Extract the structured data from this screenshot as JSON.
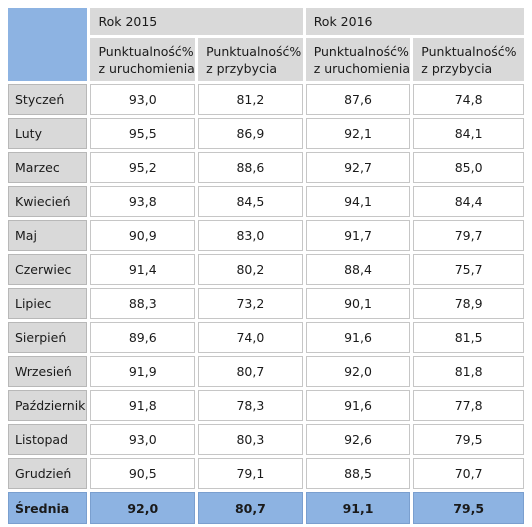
{
  "header": {
    "year1": "Rok 2015",
    "year2": "Rok 2016",
    "col_departure": [
      "Punktualność%",
      "z uruchomienia"
    ],
    "col_arrival": [
      "Punktualność%",
      "z przybycia"
    ]
  },
  "rows": [
    {
      "month": "Styczeń",
      "v": [
        "93,0",
        "81,2",
        "87,6",
        "74,8"
      ]
    },
    {
      "month": "Luty",
      "v": [
        "95,5",
        "86,9",
        "92,1",
        "84,1"
      ]
    },
    {
      "month": "Marzec",
      "v": [
        "95,2",
        "88,6",
        "92,7",
        "85,0"
      ]
    },
    {
      "month": "Kwiecień",
      "v": [
        "93,8",
        "84,5",
        "94,1",
        "84,4"
      ]
    },
    {
      "month": "Maj",
      "v": [
        "90,9",
        "83,0",
        "91,7",
        "79,7"
      ]
    },
    {
      "month": "Czerwiec",
      "v": [
        "91,4",
        "80,2",
        "88,4",
        "75,7"
      ]
    },
    {
      "month": "Lipiec",
      "v": [
        "88,3",
        "73,2",
        "90,1",
        "78,9"
      ]
    },
    {
      "month": "Sierpień",
      "v": [
        "89,6",
        "74,0",
        "91,6",
        "81,5"
      ]
    },
    {
      "month": "Wrzesień",
      "v": [
        "91,9",
        "80,7",
        "92,0",
        "81,8"
      ]
    },
    {
      "month": "Październik",
      "v": [
        "91,8",
        "78,3",
        "91,6",
        "77,8"
      ]
    },
    {
      "month": "Listopad",
      "v": [
        "93,0",
        "80,3",
        "92,6",
        "79,5"
      ]
    },
    {
      "month": "Grudzień",
      "v": [
        "90,5",
        "79,1",
        "88,5",
        "70,7"
      ]
    }
  ],
  "average": {
    "label": "Średnia",
    "v": [
      "92,0",
      "80,7",
      "91,1",
      "79,5"
    ]
  }
}
